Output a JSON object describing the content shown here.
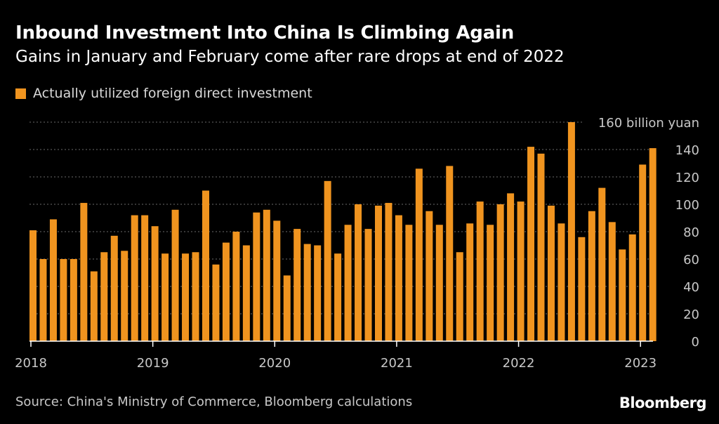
{
  "colors": {
    "bar": "#f0941f",
    "background": "#000000",
    "grid": "#6b6b6b",
    "text": "#ffffff",
    "muted": "#c8c8c8"
  },
  "chart_data": {
    "type": "bar",
    "title": "Inbound Investment Into China Is Climbing Again",
    "subtitle": "Gains in January and February come after rare drops at end of 2022",
    "xlabel": "",
    "ylabel": "",
    "ylim": [
      0,
      160
    ],
    "yticks": [
      0,
      20,
      40,
      60,
      80,
      100,
      120,
      140,
      160
    ],
    "ytick_labels": [
      "0",
      "20",
      "40",
      "60",
      "80",
      "100",
      "120",
      "140",
      "160 billion yuan"
    ],
    "grid": true,
    "legend_position": "top-left",
    "legend": [
      "Actually utilized foreign direct investment"
    ],
    "x_ticks": [
      "2018",
      "2019",
      "2020",
      "2021",
      "2022",
      "2023"
    ],
    "series": [
      {
        "name": "Actually utilized foreign direct investment",
        "categories": [
          "2018-01",
          "2018-02",
          "2018-03",
          "2018-04",
          "2018-05",
          "2018-06",
          "2018-07",
          "2018-08",
          "2018-09",
          "2018-10",
          "2018-11",
          "2018-12",
          "2019-01",
          "2019-02",
          "2019-03",
          "2019-04",
          "2019-05",
          "2019-06",
          "2019-07",
          "2019-08",
          "2019-09",
          "2019-10",
          "2019-11",
          "2019-12",
          "2020-01",
          "2020-02",
          "2020-03",
          "2020-04",
          "2020-05",
          "2020-06",
          "2020-07",
          "2020-08",
          "2020-09",
          "2020-10",
          "2020-11",
          "2020-12",
          "2021-01",
          "2021-02",
          "2021-03",
          "2021-04",
          "2021-05",
          "2021-06",
          "2021-07",
          "2021-08",
          "2021-09",
          "2021-10",
          "2021-11",
          "2021-12",
          "2022-01",
          "2022-02",
          "2022-03",
          "2022-04",
          "2022-05",
          "2022-06",
          "2022-07",
          "2022-08",
          "2022-09",
          "2022-10",
          "2022-11",
          "2022-12",
          "2023-01",
          "2023-02"
        ],
        "values": [
          81,
          60,
          89,
          60,
          60,
          101,
          51,
          65,
          77,
          66,
          92,
          92,
          84,
          64,
          96,
          64,
          65,
          110,
          56,
          72,
          80,
          70,
          94,
          96,
          88,
          48,
          82,
          71,
          70,
          117,
          64,
          85,
          100,
          82,
          99,
          101,
          92,
          85,
          126,
          95,
          85,
          128,
          65,
          86,
          102,
          85,
          100,
          108,
          102,
          142,
          137,
          99,
          86,
          160,
          76,
          95,
          112,
          87,
          67,
          78,
          129,
          141
        ]
      }
    ]
  },
  "source": "Source: China's Ministry of Commerce, Bloomberg calculations",
  "brand": "Bloomberg"
}
